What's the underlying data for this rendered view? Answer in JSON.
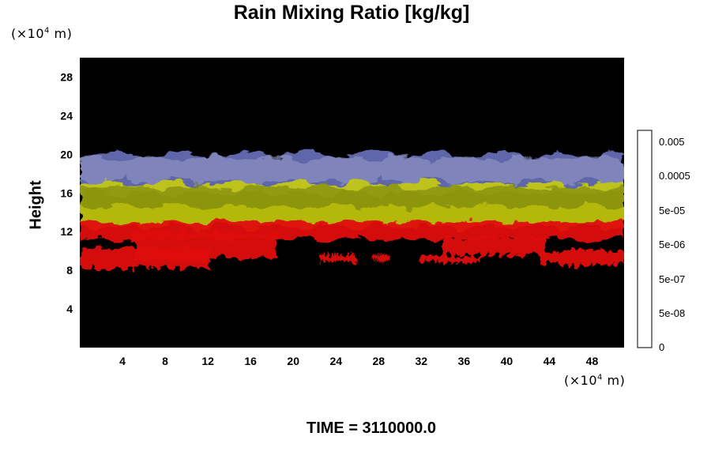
{
  "chart_data": {
    "type": "heatmap",
    "title": "Rain Mixing Ratio [kg/kg]",
    "ylabel": "Height",
    "xlabel": "",
    "x_unit_prefix": "(×10",
    "x_unit_exp": "4",
    "x_unit_suffix": " m)",
    "y_unit_prefix": "(×10",
    "y_unit_exp": "4",
    "y_unit_suffix": " m)",
    "xlim": [
      0,
      51
    ],
    "ylim": [
      0,
      30
    ],
    "x_ticks": [
      4,
      8,
      12,
      16,
      20,
      24,
      28,
      32,
      36,
      40,
      44,
      48
    ],
    "y_ticks": [
      4,
      8,
      12,
      16,
      20,
      24,
      28
    ],
    "background_color": "#000000",
    "layers": [
      {
        "color": "#e01010",
        "y_range": [
          8.5,
          13.0
        ],
        "note_values": "lower red band"
      },
      {
        "color": "#c8cc10",
        "y_range": [
          12.5,
          17.0
        ]
      },
      {
        "color": "#6f78c8",
        "y_range": [
          16.0,
          20.0
        ]
      }
    ],
    "colorbar": {
      "labels": [
        "0.005",
        "0.0005",
        "5e-05",
        "5e-06",
        "5e-07",
        "5e-08",
        "0"
      ],
      "colors": [
        "#000000",
        "#0a0a0a",
        "#141414",
        "#1e1e1e",
        "#282828",
        "#323232",
        "#3c3c3c",
        "#464646",
        "#505050",
        "#5a5a5a",
        "#646464",
        "#6e6e6e",
        "#787878",
        "#828282",
        "#8c8c8c",
        "#969696",
        "#a0a0a0",
        "#aaaaaa",
        "#b4b4b4",
        "#bebebe",
        "#c8c8c8",
        "#d2d2d2",
        "#dcdcdc",
        "#e6e6e6"
      ]
    }
  },
  "footer": {
    "time_label": "TIME = 3110000.0"
  }
}
